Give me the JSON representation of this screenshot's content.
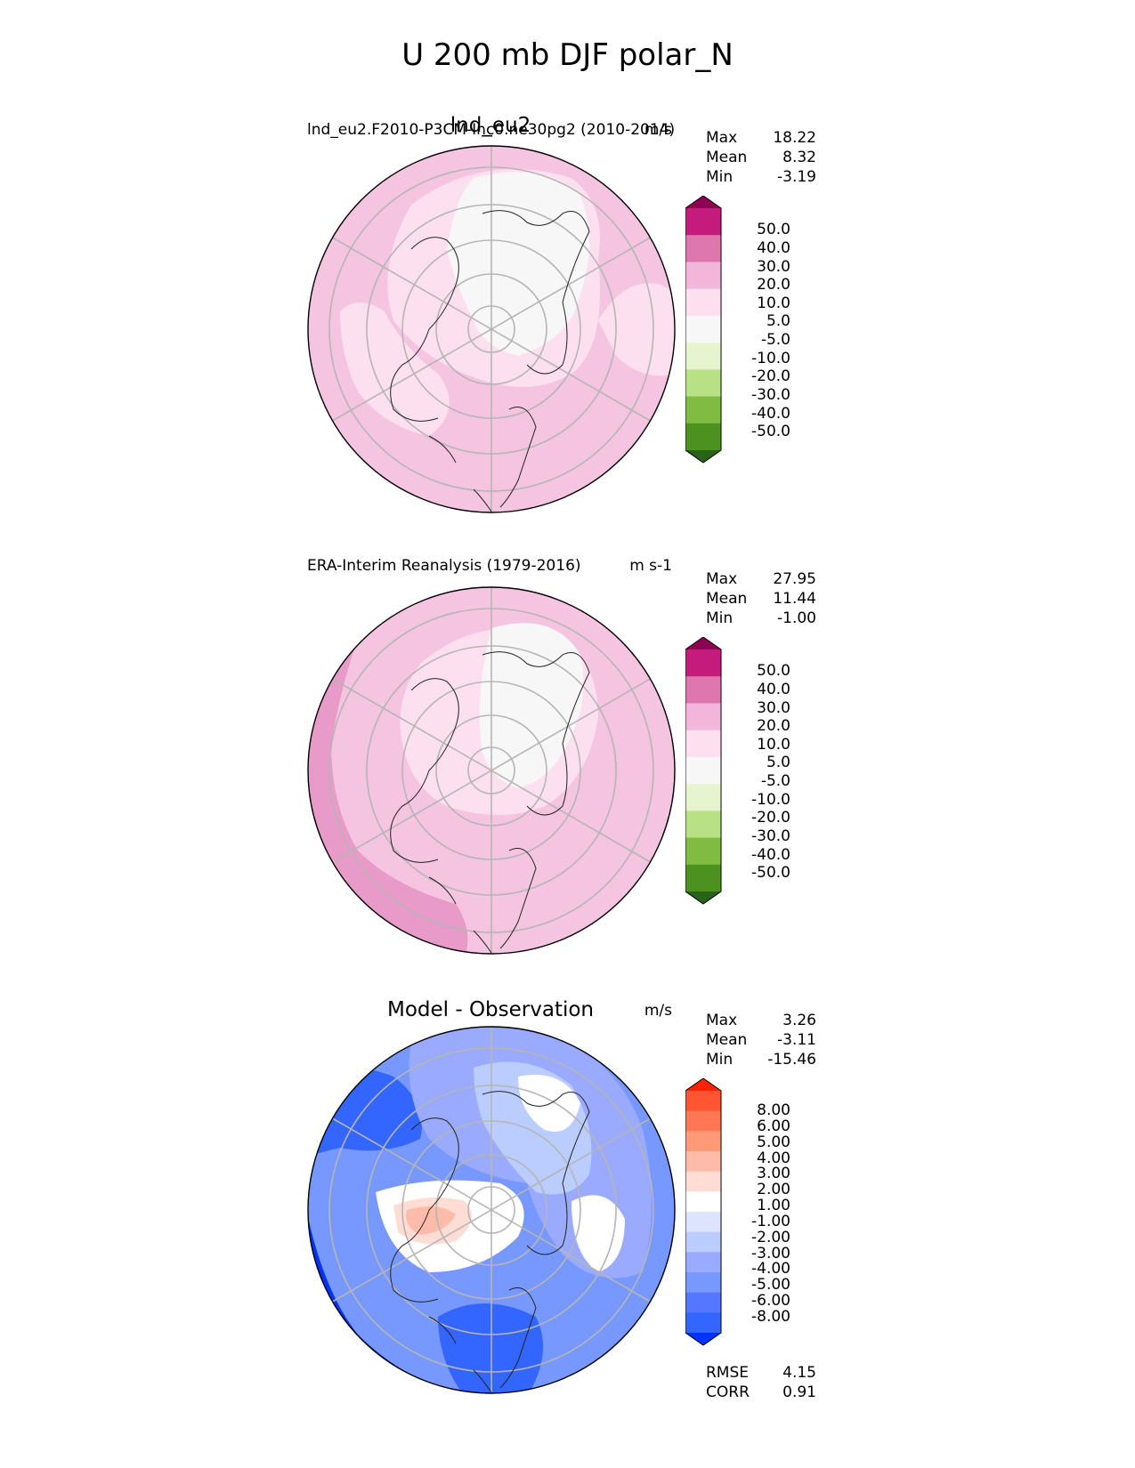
{
  "figure_title": "U 200 mb DJF polar_N",
  "colors": {
    "pink_levels": [
      "#276419",
      "#4d9221",
      "#7fbc41",
      "#b8e186",
      "#e6f5d0",
      "#f7f7f7",
      "#fde0ef",
      "#f1b6da",
      "#de77ae",
      "#c51b7d",
      "#8e0152"
    ],
    "diff_levels": [
      "#0033ff",
      "#3366ff",
      "#5577ff",
      "#7799ff",
      "#99aaff",
      "#bbccff",
      "#dde4ff",
      "#ffffff",
      "#ffdcd4",
      "#ffbbaa",
      "#ff9977",
      "#ff7755",
      "#ff5533",
      "#ff2200"
    ]
  },
  "panels": [
    {
      "id": "test",
      "title": "lnd_eu2",
      "subtitle": "lnd_eu2.F2010-P3CM-Inc0.ne30pg2 (2010-2014)",
      "units": "m/s",
      "stats": [
        {
          "label": "Max",
          "value": "18.22"
        },
        {
          "label": "Mean",
          "value": "8.32"
        },
        {
          "label": "Min",
          "value": "-3.19"
        }
      ],
      "colorbar_ticks": [
        "50.0",
        "40.0",
        "30.0",
        "20.0",
        "10.0",
        "5.0",
        "-5.0",
        "-10.0",
        "-20.0",
        "-30.0",
        "-40.0",
        "-50.0"
      ]
    },
    {
      "id": "reference",
      "subtitle": "ERA-Interim Reanalysis (1979-2016)",
      "units": "m s-1",
      "stats": [
        {
          "label": "Max",
          "value": "27.95"
        },
        {
          "label": "Mean",
          "value": "11.44"
        },
        {
          "label": "Min",
          "value": "-1.00"
        }
      ],
      "colorbar_ticks": [
        "50.0",
        "40.0",
        "30.0",
        "20.0",
        "10.0",
        "5.0",
        "-5.0",
        "-10.0",
        "-20.0",
        "-30.0",
        "-40.0",
        "-50.0"
      ]
    },
    {
      "id": "difference",
      "title": "Model - Observation",
      "units": "m/s",
      "stats": [
        {
          "label": "Max",
          "value": "3.26"
        },
        {
          "label": "Mean",
          "value": "-3.11"
        },
        {
          "label": "Min",
          "value": "-15.46"
        }
      ],
      "colorbar_ticks": [
        "8.00",
        "6.00",
        "5.00",
        "4.00",
        "3.00",
        "2.00",
        "1.00",
        "-1.00",
        "-2.00",
        "-3.00",
        "-4.00",
        "-5.00",
        "-6.00",
        "-8.00"
      ],
      "metrics": [
        {
          "label": "RMSE",
          "value": "4.15"
        },
        {
          "label": "CORR",
          "value": "0.91"
        }
      ]
    }
  ],
  "chart_data": {
    "type": "heatmap",
    "title": "U 200 mb DJF polar_N",
    "projection": "north polar stereographic",
    "variable": "U 200 mb",
    "season": "DJF",
    "panels": [
      {
        "name": "lnd_eu2",
        "max": 18.22,
        "mean": 8.32,
        "min": -3.19,
        "units": "m/s",
        "levels": [
          -50,
          -40,
          -30,
          -20,
          -10,
          -5,
          5,
          10,
          20,
          30,
          40,
          50
        ]
      },
      {
        "name": "ERA-Interim Reanalysis (1979-2016)",
        "max": 27.95,
        "mean": 11.44,
        "min": -1.0,
        "units": "m s-1",
        "levels": [
          -50,
          -40,
          -30,
          -20,
          -10,
          -5,
          5,
          10,
          20,
          30,
          40,
          50
        ]
      },
      {
        "name": "Model - Observation",
        "max": 3.26,
        "mean": -3.11,
        "min": -15.46,
        "units": "m/s",
        "levels": [
          -8,
          -6,
          -5,
          -4,
          -3,
          -2,
          -1,
          1,
          2,
          3,
          4,
          5,
          6,
          8
        ],
        "rmse": 4.15,
        "corr": 0.91
      }
    ]
  }
}
